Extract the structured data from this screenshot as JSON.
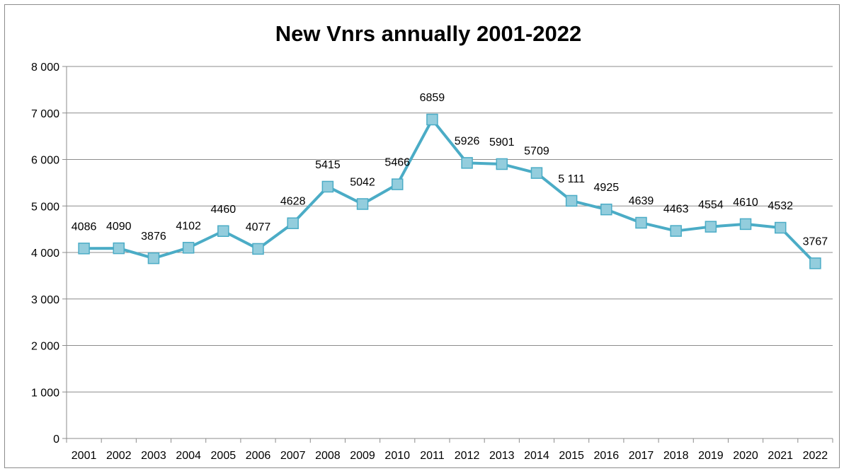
{
  "chart_data": {
    "type": "line",
    "title": "New Vnrs annually 2001-2022",
    "xlabel": "",
    "ylabel": "",
    "ylim": [
      0,
      8000
    ],
    "yticks": [
      0,
      1000,
      2000,
      3000,
      4000,
      5000,
      6000,
      7000,
      8000
    ],
    "ytick_labels": [
      "0",
      "1 000",
      "2 000",
      "3 000",
      "4 000",
      "5 000",
      "6 000",
      "7 000",
      "8 000"
    ],
    "grid": "horizontal",
    "legend": "none",
    "line_color": "#4BACC6",
    "marker_fill": "#93CDDD",
    "marker_stroke": "#4BACC6",
    "marker": "square",
    "x": [
      "2001",
      "2002",
      "2003",
      "2004",
      "2005",
      "2006",
      "2007",
      "2008",
      "2009",
      "2010",
      "2011",
      "2012",
      "2013",
      "2014",
      "2015",
      "2016",
      "2017",
      "2018",
      "2019",
      "2020",
      "2021",
      "2022"
    ],
    "values": [
      4086,
      4090,
      3876,
      4102,
      4460,
      4077,
      4628,
      5415,
      5042,
      5466,
      6859,
      5926,
      5901,
      5709,
      5111,
      4925,
      4639,
      4463,
      4554,
      4610,
      4532,
      3767
    ],
    "data_labels": [
      "4086",
      "4090",
      "3876",
      "4102",
      "4460",
      "4077",
      "4628",
      "5415",
      "5042",
      "5466",
      "6859",
      "5926",
      "5901",
      "5709",
      "5 111",
      "4925",
      "4639",
      "4463",
      "4554",
      "4610",
      "4532",
      "3767"
    ]
  }
}
